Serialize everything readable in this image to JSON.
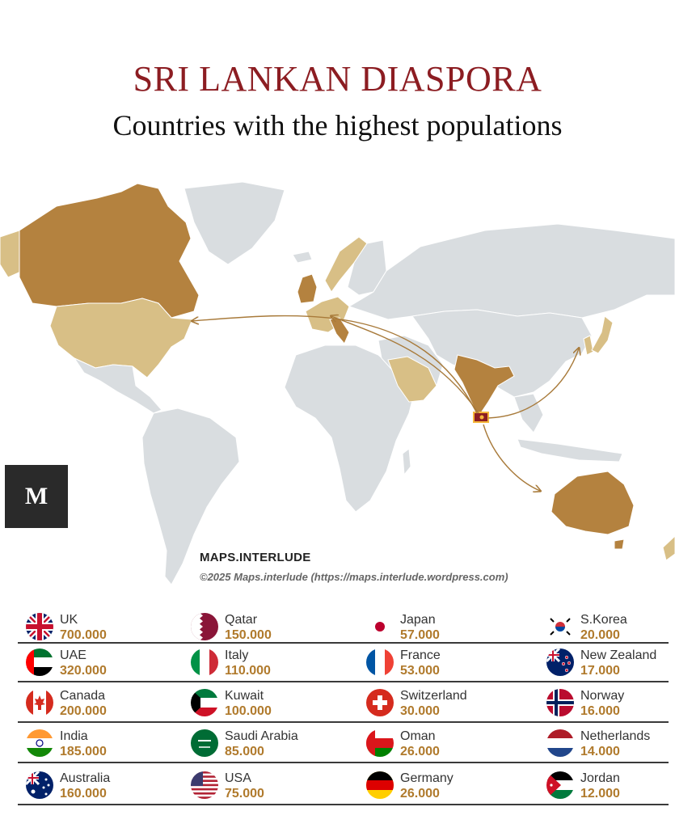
{
  "title": "SRI LANKAN DIASPORA",
  "subtitle": "Countries with the highest populations",
  "logo_letter": "M",
  "brand": "MAPS.INTERLUDE",
  "copyright": "©2025 Maps.interlude (https://maps.interlude.wordpress.com)",
  "colors": {
    "tier_high": "#b4823f",
    "tier_mid": "#d8bf86",
    "land": "#d9dde0",
    "title": "#8c1d22",
    "value": "#b07a2c"
  },
  "legend": {
    "columns": [
      [
        {
          "country": "UK",
          "value": "700.000",
          "flag": "uk-flag-icon"
        },
        {
          "country": "UAE",
          "value": "320.000",
          "flag": "uae-flag-icon"
        },
        {
          "country": "Canada",
          "value": "200.000",
          "flag": "canada-flag-icon"
        },
        {
          "country": "India",
          "value": "185.000",
          "flag": "india-flag-icon"
        },
        {
          "country": "Australia",
          "value": "160.000",
          "flag": "australia-flag-icon"
        }
      ],
      [
        {
          "country": "Qatar",
          "value": "150.000",
          "flag": "qatar-flag-icon"
        },
        {
          "country": "Italy",
          "value": "110.000",
          "flag": "italy-flag-icon"
        },
        {
          "country": "Kuwait",
          "value": "100.000",
          "flag": "kuwait-flag-icon"
        },
        {
          "country": "Saudi Arabia",
          "value": "85.000",
          "flag": "saudi-arabia-flag-icon"
        },
        {
          "country": "USA",
          "value": "75.000",
          "flag": "usa-flag-icon"
        }
      ],
      [
        {
          "country": "Japan",
          "value": "57.000",
          "flag": "japan-flag-icon"
        },
        {
          "country": "France",
          "value": "53.000",
          "flag": "france-flag-icon"
        },
        {
          "country": "Switzerland",
          "value": "30.000",
          "flag": "switzerland-flag-icon"
        },
        {
          "country": "Oman",
          "value": "26.000",
          "flag": "oman-flag-icon"
        },
        {
          "country": "Germany",
          "value": "26.000",
          "flag": "germany-flag-icon"
        }
      ],
      [
        {
          "country": "S.Korea",
          "value": "20.000",
          "flag": "south-korea-flag-icon"
        },
        {
          "country": "New Zealand",
          "value": "17.000",
          "flag": "new-zealand-flag-icon"
        },
        {
          "country": "Norway",
          "value": "16.000",
          "flag": "norway-flag-icon"
        },
        {
          "country": "Netherlands",
          "value": "14.000",
          "flag": "netherlands-flag-icon"
        },
        {
          "country": "Jordan",
          "value": "12.000",
          "flag": "jordan-flag-icon"
        }
      ]
    ]
  }
}
